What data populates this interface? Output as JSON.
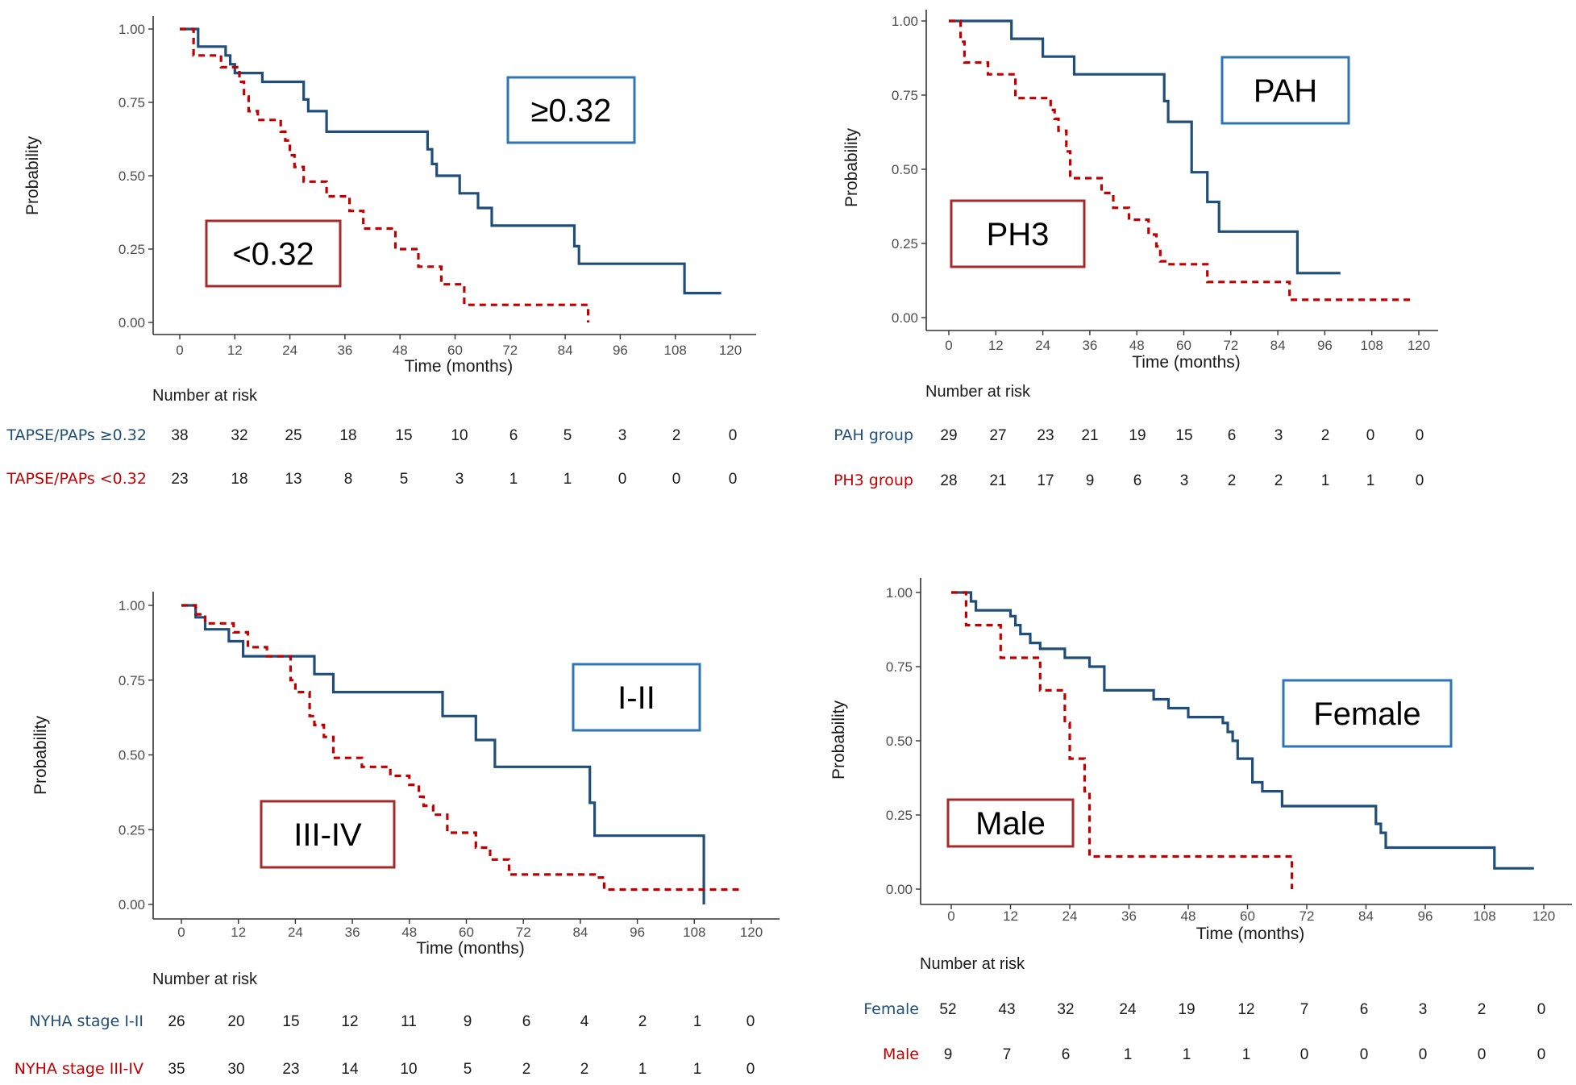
{
  "colors": {
    "group_a": "#1f4e79",
    "group_b": "#c00000",
    "box_a": "#2e75b6",
    "box_b": "#a52a2a",
    "axis": "#333333"
  },
  "chart_data": [
    {
      "type": "line",
      "title": "",
      "xlabel": "Time (months)",
      "ylabel": "Probability",
      "xlim": [
        0,
        120
      ],
      "ylim": [
        0,
        1
      ],
      "xticks": [
        "0",
        "12",
        "24",
        "36",
        "48",
        "60",
        "72",
        "84",
        "96",
        "108",
        "120"
      ],
      "yticks": [
        "0.00",
        "0.25",
        "0.50",
        "0.75",
        "1.00"
      ],
      "risk_table_title": "Number at risk",
      "series": [
        {
          "name": "TAPSE/PAPs ≥0.32",
          "box_label": "≥0.32",
          "style": "solid",
          "x": [
            0,
            4,
            10,
            11,
            12,
            18,
            27,
            28,
            32,
            54,
            55,
            56,
            61,
            65,
            68,
            86,
            87,
            107,
            110,
            118
          ],
          "y": [
            1.0,
            0.94,
            0.91,
            0.88,
            0.85,
            0.82,
            0.76,
            0.72,
            0.65,
            0.59,
            0.54,
            0.5,
            0.44,
            0.39,
            0.33,
            0.26,
            0.2,
            0.2,
            0.1,
            0.1
          ],
          "at_risk": [
            38,
            32,
            25,
            18,
            15,
            10,
            6,
            5,
            3,
            2,
            0
          ]
        },
        {
          "name": "TAPSE/PAPs <0.32",
          "box_label": "<0.32",
          "style": "dashed",
          "x": [
            0,
            3,
            9,
            13,
            14,
            15,
            17,
            22,
            23,
            24,
            25,
            27,
            32,
            37,
            40,
            47,
            52,
            57,
            62,
            65,
            83,
            89
          ],
          "y": [
            1.0,
            0.91,
            0.87,
            0.82,
            0.77,
            0.72,
            0.69,
            0.65,
            0.62,
            0.57,
            0.53,
            0.48,
            0.43,
            0.38,
            0.32,
            0.25,
            0.19,
            0.13,
            0.06,
            0.06,
            0.06,
            0.0
          ],
          "at_risk": [
            23,
            18,
            13,
            8,
            5,
            3,
            1,
            1,
            0,
            0,
            0
          ]
        }
      ]
    },
    {
      "type": "line",
      "title": "",
      "xlabel": "Time (months)",
      "ylabel": "Probability",
      "xlim": [
        0,
        120
      ],
      "ylim": [
        0,
        1
      ],
      "xticks": [
        "0",
        "12",
        "24",
        "36",
        "48",
        "60",
        "72",
        "84",
        "96",
        "108",
        "120"
      ],
      "yticks": [
        "0.00",
        "0.25",
        "0.50",
        "0.75",
        "1.00"
      ],
      "risk_table_title": "Number at risk",
      "series": [
        {
          "name": "PAH group",
          "box_label": "PAH",
          "style": "solid",
          "x": [
            0,
            16,
            24,
            32,
            55,
            56,
            62,
            66,
            69,
            89,
            100
          ],
          "y": [
            1.0,
            0.94,
            0.88,
            0.82,
            0.73,
            0.66,
            0.49,
            0.39,
            0.29,
            0.15,
            0.15
          ],
          "at_risk": [
            29,
            27,
            23,
            21,
            19,
            15,
            6,
            3,
            2,
            0,
            0
          ]
        },
        {
          "name": "PH3 group",
          "box_label": "PH3",
          "style": "dashed",
          "x": [
            0,
            3,
            4,
            10,
            17,
            26,
            27,
            28,
            30,
            31,
            39,
            42,
            46,
            51,
            53,
            54,
            56,
            60,
            63,
            66,
            87,
            118
          ],
          "y": [
            1.0,
            0.93,
            0.86,
            0.82,
            0.74,
            0.7,
            0.67,
            0.63,
            0.56,
            0.47,
            0.42,
            0.37,
            0.33,
            0.28,
            0.24,
            0.19,
            0.18,
            0.18,
            0.18,
            0.12,
            0.06,
            0.06
          ],
          "at_risk": [
            28,
            21,
            17,
            9,
            6,
            3,
            2,
            2,
            1,
            1,
            0
          ]
        }
      ]
    },
    {
      "type": "line",
      "title": "",
      "xlabel": "Time (months)",
      "ylabel": "Probability",
      "xlim": [
        0,
        120
      ],
      "ylim": [
        0,
        1
      ],
      "xticks": [
        "0",
        "12",
        "24",
        "36",
        "48",
        "60",
        "72",
        "84",
        "96",
        "108",
        "120"
      ],
      "yticks": [
        "0.00",
        "0.25",
        "0.50",
        "0.75",
        "1.00"
      ],
      "risk_table_title": "Number at risk",
      "series": [
        {
          "name": "NYHA stage I-II",
          "box_label": "I-II",
          "style": "solid",
          "x": [
            0,
            3,
            5,
            10,
            13,
            28,
            32,
            55,
            62,
            66,
            86,
            87,
            110,
            110
          ],
          "y": [
            1.0,
            0.96,
            0.92,
            0.88,
            0.83,
            0.77,
            0.71,
            0.63,
            0.55,
            0.46,
            0.34,
            0.23,
            0.23,
            0.0
          ],
          "at_risk": [
            26,
            20,
            15,
            12,
            11,
            9,
            6,
            4,
            2,
            1,
            0
          ]
        },
        {
          "name": "NYHA stage III-IV",
          "box_label": "III-IV",
          "style": "dashed",
          "x": [
            0,
            3,
            5,
            11,
            14,
            18,
            23,
            24,
            27,
            28,
            30,
            32,
            38,
            44,
            48,
            50,
            51,
            53,
            56,
            62,
            65,
            69,
            87,
            89,
            118
          ],
          "y": [
            1.0,
            0.97,
            0.94,
            0.91,
            0.86,
            0.83,
            0.75,
            0.71,
            0.63,
            0.6,
            0.56,
            0.49,
            0.46,
            0.43,
            0.4,
            0.36,
            0.33,
            0.3,
            0.24,
            0.19,
            0.15,
            0.1,
            0.09,
            0.05,
            0.05
          ],
          "at_risk": [
            35,
            30,
            23,
            14,
            10,
            5,
            2,
            2,
            1,
            1,
            0
          ]
        }
      ]
    },
    {
      "type": "line",
      "title": "",
      "xlabel": "Time (months)",
      "ylabel": "Probability",
      "xlim": [
        0,
        120
      ],
      "ylim": [
        0,
        1
      ],
      "xticks": [
        "0",
        "12",
        "24",
        "36",
        "48",
        "60",
        "72",
        "84",
        "96",
        "108",
        "120"
      ],
      "yticks": [
        "0.00",
        "0.25",
        "0.50",
        "0.75",
        "1.00"
      ],
      "risk_table_title": "Number at risk",
      "series": [
        {
          "name": "Female",
          "box_label": "Female",
          "style": "solid",
          "x": [
            0,
            4,
            5,
            12,
            13,
            14,
            16,
            18,
            23,
            28,
            31,
            41,
            44,
            48,
            55,
            56,
            57,
            58,
            61,
            63,
            67,
            86,
            87,
            88,
            110,
            118
          ],
          "y": [
            1.0,
            0.97,
            0.94,
            0.92,
            0.89,
            0.86,
            0.83,
            0.81,
            0.78,
            0.75,
            0.67,
            0.64,
            0.61,
            0.58,
            0.56,
            0.53,
            0.5,
            0.44,
            0.36,
            0.33,
            0.28,
            0.22,
            0.19,
            0.14,
            0.07,
            0.07
          ],
          "at_risk": [
            52,
            43,
            32,
            24,
            19,
            12,
            7,
            6,
            3,
            2,
            0
          ]
        },
        {
          "name": "Male",
          "box_label": "Male",
          "style": "dashed",
          "x": [
            0,
            3,
            10,
            18,
            23,
            24,
            27,
            28,
            68,
            69
          ],
          "y": [
            1.0,
            0.89,
            0.78,
            0.67,
            0.56,
            0.44,
            0.33,
            0.11,
            0.11,
            0.0
          ],
          "at_risk": [
            9,
            7,
            6,
            1,
            1,
            1,
            0,
            0,
            0,
            0,
            0
          ]
        }
      ]
    }
  ]
}
